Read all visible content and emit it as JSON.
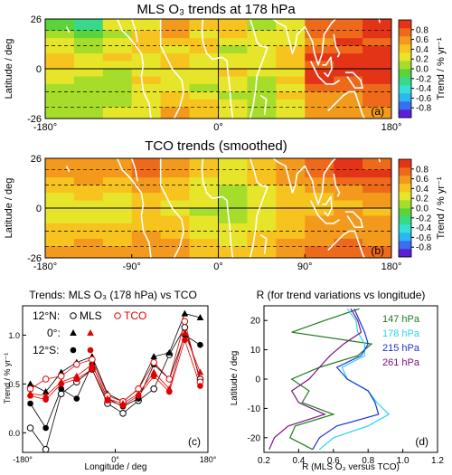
{
  "palette": {
    "colorbar": [
      "#5a1fd6",
      "#3a6df0",
      "#2bb7f0",
      "#35e0d6",
      "#39d98a",
      "#5bd33a",
      "#a6dd2a",
      "#e7e52a",
      "#f7c41f",
      "#f39a1c",
      "#ee6a1a",
      "#e43418"
    ],
    "coast": "#ffffff",
    "mls_color": "#000000",
    "tco_color": "#e30000",
    "line_colors": {
      "147": "#1e7a1e",
      "178": "#22d6f0",
      "215": "#1c33d6",
      "261": "#7a1480"
    }
  },
  "chart_data": [
    {
      "type": "heatmap",
      "id": "a",
      "title": "MLS O₃ trends at 178 hPa",
      "panel_label": "(a)",
      "ylabel": "Latitude / deg",
      "xlim": [
        -180,
        180
      ],
      "ylim": [
        -26,
        26
      ],
      "y_tick_labels": [
        "26",
        "0",
        "-26"
      ],
      "x_tick_labels": [
        "-180°",
        "0°",
        "180°"
      ],
      "colorbar": {
        "label": "Trend / % yr⁻¹",
        "range": [
          -1.0,
          1.0
        ],
        "tick_labels": [
          "0.8",
          "0.6",
          "0.4",
          "0.2",
          "0.0",
          "-0.2",
          "-0.4",
          "-0.6",
          "-0.8"
        ]
      },
      "lon_bins": [
        -180,
        -150,
        -120,
        -90,
        -60,
        -30,
        0,
        30,
        60,
        90,
        120,
        150,
        180
      ],
      "lat_bins": [
        26,
        20,
        16,
        12,
        8,
        4,
        0,
        -4,
        -8,
        -12,
        -16,
        -20,
        -26
      ],
      "values": [
        [
          -0.1,
          -0.2,
          0.3,
          0.2,
          0.65,
          0.4,
          0.35,
          0.15,
          0.2,
          0.75,
          0.8,
          0.85
        ],
        [
          0.1,
          -0.05,
          0.1,
          0.35,
          0.55,
          0.3,
          0.45,
          0.2,
          0.25,
          0.7,
          0.75,
          0.85
        ],
        [
          0.2,
          0.05,
          0.2,
          0.45,
          0.35,
          0.4,
          0.2,
          0.3,
          0.3,
          0.65,
          0.85,
          0.8
        ],
        [
          0.3,
          0.15,
          0.25,
          0.4,
          0.3,
          0.35,
          0.1,
          0.25,
          0.35,
          0.8,
          0.7,
          0.9
        ],
        [
          0.4,
          0.3,
          0.35,
          0.25,
          0.35,
          0.3,
          0.25,
          0.2,
          0.4,
          0.85,
          0.9,
          0.95
        ],
        [
          0.35,
          0.25,
          0.3,
          0.2,
          0.4,
          0.3,
          0.3,
          0.25,
          0.35,
          0.75,
          0.85,
          0.9
        ],
        [
          0.3,
          0.2,
          0.15,
          0.3,
          0.2,
          0.25,
          0.35,
          0.2,
          0.3,
          0.9,
          0.95,
          0.95
        ],
        [
          0.2,
          0.05,
          0.1,
          0.35,
          0.3,
          0.25,
          0.3,
          0.1,
          0.4,
          0.85,
          0.8,
          0.9
        ],
        [
          0.15,
          0.1,
          0.15,
          0.2,
          0.25,
          0.1,
          0.2,
          0.15,
          0.25,
          0.75,
          0.7,
          0.8
        ],
        [
          0.1,
          0.05,
          0.1,
          0.25,
          0.4,
          0.3,
          0.15,
          0.1,
          0.35,
          0.6,
          0.65,
          0.75
        ],
        [
          0.05,
          0.1,
          0.05,
          0.2,
          0.45,
          0.35,
          0.2,
          0.05,
          0.3,
          0.55,
          0.6,
          0.7
        ],
        [
          0.1,
          0.15,
          0.2,
          0.3,
          0.5,
          0.4,
          0.25,
          0.15,
          0.25,
          0.5,
          0.55,
          0.65
        ]
      ]
    },
    {
      "type": "heatmap",
      "id": "b",
      "title": "TCO trends (smoothed)",
      "panel_label": "(b)",
      "ylabel": "Latitude / deg",
      "xlim": [
        -180,
        180
      ],
      "ylim": [
        -26,
        26
      ],
      "y_tick_labels": [
        "26",
        "0",
        "-26"
      ],
      "x_tick_labels": [
        "-180°",
        "-90°",
        "0°",
        "90°",
        "180°"
      ],
      "colorbar": {
        "label": "Trend / % yr⁻¹",
        "range": [
          -1.0,
          1.0
        ],
        "tick_labels": [
          "0.8",
          "0.6",
          "0.4",
          "0.2",
          "0.0",
          "-0.2",
          "-0.4",
          "-0.6",
          "-0.8"
        ]
      },
      "lon_bins": [
        -180,
        -150,
        -120,
        -90,
        -60,
        -30,
        0,
        30,
        60,
        90,
        120,
        150,
        180
      ],
      "lat_bins": [
        26,
        20,
        16,
        12,
        8,
        4,
        0,
        -4,
        -8,
        -12,
        -16,
        -20,
        -26
      ],
      "values": [
        [
          0.55,
          0.6,
          0.65,
          0.75,
          0.6,
          0.4,
          0.3,
          0.45,
          0.5,
          0.75,
          0.85,
          0.8
        ],
        [
          0.5,
          0.55,
          0.6,
          0.7,
          0.55,
          0.35,
          0.25,
          0.4,
          0.55,
          0.7,
          0.9,
          0.85
        ],
        [
          0.4,
          0.5,
          0.45,
          0.6,
          0.45,
          0.3,
          0.2,
          0.35,
          0.5,
          0.6,
          0.75,
          0.8
        ],
        [
          0.35,
          0.45,
          0.4,
          0.55,
          0.4,
          0.25,
          0.15,
          0.3,
          0.45,
          0.55,
          0.65,
          0.7
        ],
        [
          0.3,
          0.35,
          0.3,
          0.45,
          0.35,
          0.2,
          0.1,
          0.25,
          0.4,
          0.45,
          0.55,
          0.6
        ],
        [
          0.25,
          0.3,
          0.3,
          0.4,
          0.3,
          0.2,
          0.05,
          0.2,
          0.35,
          0.4,
          0.45,
          0.5
        ],
        [
          0.25,
          0.3,
          0.25,
          0.35,
          0.3,
          0.15,
          0.1,
          0.2,
          0.35,
          0.45,
          0.5,
          0.45
        ],
        [
          0.3,
          0.3,
          0.3,
          0.4,
          0.35,
          0.2,
          0.15,
          0.25,
          0.35,
          0.5,
          0.55,
          0.5
        ],
        [
          0.35,
          0.4,
          0.35,
          0.45,
          0.4,
          0.25,
          0.2,
          0.3,
          0.4,
          0.55,
          0.6,
          0.55
        ],
        [
          0.4,
          0.45,
          0.4,
          0.5,
          0.45,
          0.3,
          0.25,
          0.35,
          0.45,
          0.6,
          0.65,
          0.6
        ],
        [
          0.45,
          0.5,
          0.45,
          0.55,
          0.5,
          0.35,
          0.3,
          0.4,
          0.5,
          0.65,
          0.7,
          0.65
        ],
        [
          0.5,
          0.55,
          0.5,
          0.6,
          0.55,
          0.4,
          0.35,
          0.45,
          0.55,
          0.7,
          0.75,
          0.7
        ]
      ]
    },
    {
      "type": "line",
      "id": "c",
      "title": "Trends: MLS O₃ (178 hPa) vs TCO",
      "panel_label": "(c)",
      "xlabel": "Longitude / deg",
      "ylabel": "Trend / % yr⁻¹",
      "xlim": [
        -180,
        180
      ],
      "ylim": [
        -0.2,
        1.3
      ],
      "x_tick_labels": [
        "-180°",
        "0°",
        "180°"
      ],
      "y_ticks": [
        0.0,
        0.5,
        1.0
      ],
      "y_tick_labels": [
        "0.0",
        "0.5",
        "1.0"
      ],
      "legend": {
        "mls_label": "MLS",
        "tco_label": "TCO",
        "row_labels": [
          "12°N:",
          "0°:",
          "12°S:"
        ]
      },
      "x": [
        -165,
        -135,
        -105,
        -75,
        -45,
        -15,
        15,
        45,
        75,
        105,
        135,
        165
      ],
      "series": [
        {
          "source": "MLS",
          "lat": "12N",
          "marker": "open-circle",
          "values": [
            0.05,
            -0.17,
            0.4,
            0.52,
            0.65,
            0.3,
            0.2,
            0.33,
            0.45,
            0.8,
            1.08,
            0.55
          ]
        },
        {
          "source": "MLS",
          "lat": "0",
          "marker": "filled-triangle",
          "values": [
            0.5,
            0.42,
            0.62,
            0.72,
            0.78,
            0.4,
            0.32,
            0.45,
            0.78,
            0.82,
            1.22,
            1.18
          ]
        },
        {
          "source": "MLS",
          "lat": "12S",
          "marker": "filled-circle",
          "values": [
            0.3,
            0.05,
            0.45,
            0.35,
            0.7,
            0.35,
            0.27,
            0.35,
            0.7,
            0.55,
            1.0,
            0.9
          ]
        },
        {
          "source": "TCO",
          "lat": "12N",
          "marker": "open-circle",
          "values": [
            0.45,
            0.55,
            0.58,
            0.7,
            0.75,
            0.38,
            0.32,
            0.45,
            0.72,
            0.55,
            1.14,
            0.52
          ]
        },
        {
          "source": "TCO",
          "lat": "0",
          "marker": "filled-triangle",
          "values": [
            0.4,
            0.38,
            0.52,
            0.58,
            0.7,
            0.35,
            0.3,
            0.4,
            0.62,
            0.45,
            1.02,
            0.62
          ]
        },
        {
          "source": "TCO",
          "lat": "12S",
          "marker": "filled-circle",
          "values": [
            0.38,
            0.34,
            0.5,
            0.55,
            0.65,
            0.33,
            0.28,
            0.38,
            0.58,
            0.42,
            0.95,
            0.48
          ]
        }
      ]
    },
    {
      "type": "line",
      "id": "d",
      "title": "R (for trend variations vs longitude)",
      "panel_label": "(d)",
      "xlabel": "R (MLS O₃ versus TCO)",
      "ylabel": "Latitude / deg",
      "xlim": [
        0.2,
        1.2
      ],
      "ylim": [
        -25,
        25
      ],
      "x_ticks": [
        0.2,
        0.4,
        0.6,
        0.8,
        1.0,
        1.2
      ],
      "x_tick_labels": [
        "0.2",
        "0.4",
        "0.6",
        "0.8",
        "1.0",
        "1.2"
      ],
      "y_ticks": [
        20,
        10,
        0,
        -10,
        -20
      ],
      "y_tick_labels": [
        "20",
        "10",
        "0",
        "-10",
        "-20"
      ],
      "y": [
        24,
        20,
        16,
        12,
        8,
        4,
        0,
        -4,
        -8,
        -12,
        -16,
        -20,
        -24
      ],
      "series": [
        {
          "name": "147 hPa",
          "x": [
            0.75,
            0.55,
            0.36,
            0.82,
            0.74,
            0.52,
            0.36,
            0.46,
            0.42,
            0.6,
            0.38,
            0.35,
            0.48
          ]
        },
        {
          "name": "178 hPa",
          "x": [
            0.68,
            0.73,
            0.74,
            0.78,
            0.78,
            0.65,
            0.68,
            0.8,
            0.85,
            0.92,
            0.8,
            0.6,
            0.52
          ]
        },
        {
          "name": "215 hPa",
          "x": [
            0.72,
            0.75,
            0.78,
            0.8,
            0.76,
            0.62,
            0.68,
            0.8,
            0.84,
            0.86,
            0.62,
            0.52,
            0.48
          ]
        },
        {
          "name": "261 hPa",
          "x": [
            0.7,
            0.74,
            0.76,
            0.66,
            0.58,
            0.52,
            0.46,
            0.36,
            0.4,
            0.55,
            0.34,
            0.26,
            0.23
          ]
        }
      ]
    }
  ]
}
